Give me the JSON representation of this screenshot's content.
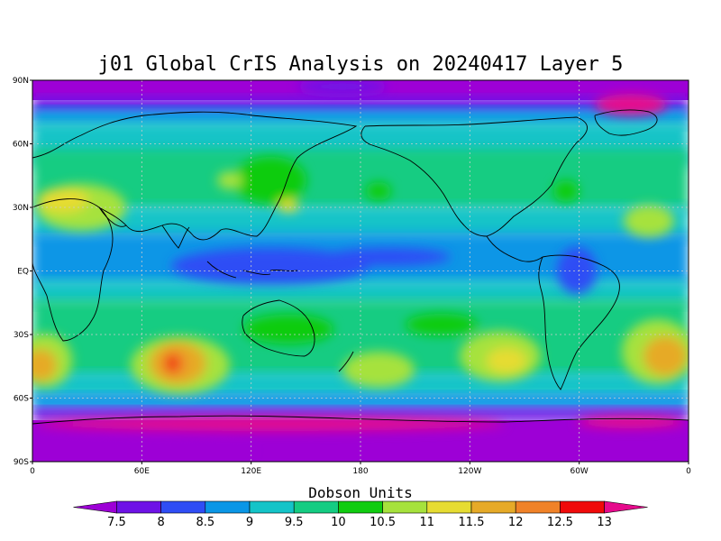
{
  "title": "j01 Global CrIS Analysis on 20240417 Layer 5",
  "lat_labels": [
    "90N",
    "60N",
    "30N",
    "EQ",
    "30S",
    "60S",
    "90S"
  ],
  "lon_labels": [
    "0",
    "60E",
    "120E",
    "180",
    "120W",
    "60W",
    "0"
  ],
  "colorbar": {
    "title": "Dobson Units",
    "levels": [
      "7.5",
      "8",
      "8.5",
      "9",
      "9.5",
      "10",
      "10.5",
      "11",
      "11.5",
      "12",
      "12.5",
      "13"
    ],
    "colors": [
      "#9d00d6",
      "#6e12e6",
      "#2f4df5",
      "#0a96e6",
      "#14c4c8",
      "#14cc82",
      "#10cc10",
      "#a6e23c",
      "#e6dc32",
      "#e6aa28",
      "#f08228",
      "#f00a0a",
      "#e60a8c"
    ]
  },
  "chart_data": {
    "type": "heatmap",
    "title": "j01 Global CrIS Analysis on 20240417 Layer 5",
    "units": "Dobson Units",
    "xlabel": "",
    "ylabel": "",
    "xlim": [
      0,
      360
    ],
    "ylim": [
      -90,
      90
    ],
    "levels": [
      7.5,
      8,
      8.5,
      9,
      9.5,
      10,
      10.5,
      11,
      11.5,
      12,
      12.5,
      13
    ],
    "features": [
      {
        "name": "north polar minimum",
        "lat_range": [
          75,
          90
        ],
        "value": 7.5
      },
      {
        "name": "arctic pink patch",
        "lon": 315,
        "lat": 82,
        "value": 13
      },
      {
        "name": "tropical low band",
        "lat_range": [
          -10,
          15
        ],
        "value": 8.5
      },
      {
        "name": "south indian ocean maximum",
        "lon": 75,
        "lat": -43,
        "value": 13
      },
      {
        "name": "south atlantic high",
        "lon": 340,
        "lat": -40,
        "value": 11.5
      },
      {
        "name": "south pacific high",
        "lon": 215,
        "lat": -35,
        "value": 11
      },
      {
        "name": "southern polar minimum",
        "lat_range": [
          -90,
          -70
        ],
        "value": 7.5
      }
    ]
  }
}
